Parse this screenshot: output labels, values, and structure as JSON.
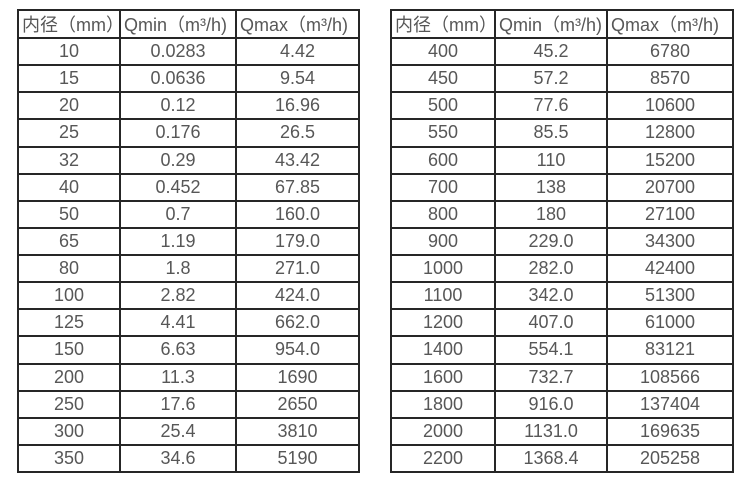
{
  "page": {
    "background_color": "#ffffff",
    "border_color": "#262626",
    "text_color": "#575757"
  },
  "tables": [
    {
      "name": "flow-table-small-diameters",
      "headers": [
        "内径（mm）",
        "Qmin（m³/h)",
        "Qmax（m³/h)"
      ],
      "rows": [
        [
          "10",
          "0.0283",
          "4.42"
        ],
        [
          "15",
          "0.0636",
          "9.54"
        ],
        [
          "20",
          "0.12",
          "16.96"
        ],
        [
          "25",
          "0.176",
          "26.5"
        ],
        [
          "32",
          "0.29",
          "43.42"
        ],
        [
          "40",
          "0.452",
          "67.85"
        ],
        [
          "50",
          "0.7",
          "160.0"
        ],
        [
          "65",
          "1.19",
          "179.0"
        ],
        [
          "80",
          "1.8",
          "271.0"
        ],
        [
          "100",
          "2.82",
          "424.0"
        ],
        [
          "125",
          "4.41",
          "662.0"
        ],
        [
          "150",
          "6.63",
          "954.0"
        ],
        [
          "200",
          "11.3",
          "1690"
        ],
        [
          "250",
          "17.6",
          "2650"
        ],
        [
          "300",
          "25.4",
          "3810"
        ],
        [
          "350",
          "34.6",
          "5190"
        ]
      ]
    },
    {
      "name": "flow-table-large-diameters",
      "headers": [
        "内径（mm）",
        "Qmin（m³/h)",
        "Qmax（m³/h)"
      ],
      "rows": [
        [
          "400",
          "45.2",
          "6780"
        ],
        [
          "450",
          "57.2",
          "8570"
        ],
        [
          "500",
          "77.6",
          "10600"
        ],
        [
          "550",
          "85.5",
          "12800"
        ],
        [
          "600",
          "110",
          "15200"
        ],
        [
          "700",
          "138",
          "20700"
        ],
        [
          "800",
          "180",
          "27100"
        ],
        [
          "900",
          "229.0",
          "34300"
        ],
        [
          "1000",
          "282.0",
          "42400"
        ],
        [
          "1100",
          "342.0",
          "51300"
        ],
        [
          "1200",
          "407.0",
          "61000"
        ],
        [
          "1400",
          "554.1",
          "83121"
        ],
        [
          "1600",
          "732.7",
          "108566"
        ],
        [
          "1800",
          "916.0",
          "137404"
        ],
        [
          "2000",
          "1131.0",
          "169635"
        ],
        [
          "2200",
          "1368.4",
          "205258"
        ]
      ]
    }
  ],
  "chart_data": [
    {
      "type": "table",
      "title": "",
      "columns": [
        "内径（mm）",
        "Qmin（m³/h)",
        "Qmax（m³/h)"
      ],
      "rows": [
        [
          10,
          0.0283,
          4.42
        ],
        [
          15,
          0.0636,
          9.54
        ],
        [
          20,
          0.12,
          16.96
        ],
        [
          25,
          0.176,
          26.5
        ],
        [
          32,
          0.29,
          43.42
        ],
        [
          40,
          0.452,
          67.85
        ],
        [
          50,
          0.7,
          160.0
        ],
        [
          65,
          1.19,
          179.0
        ],
        [
          80,
          1.8,
          271.0
        ],
        [
          100,
          2.82,
          424.0
        ],
        [
          125,
          4.41,
          662.0
        ],
        [
          150,
          6.63,
          954.0
        ],
        [
          200,
          11.3,
          1690
        ],
        [
          250,
          17.6,
          2650
        ],
        [
          300,
          25.4,
          3810
        ],
        [
          350,
          34.6,
          5190
        ]
      ]
    },
    {
      "type": "table",
      "title": "",
      "columns": [
        "内径（mm）",
        "Qmin（m³/h)",
        "Qmax（m³/h)"
      ],
      "rows": [
        [
          400,
          45.2,
          6780
        ],
        [
          450,
          57.2,
          8570
        ],
        [
          500,
          77.6,
          10600
        ],
        [
          550,
          85.5,
          12800
        ],
        [
          600,
          110,
          15200
        ],
        [
          700,
          138,
          20700
        ],
        [
          800,
          180,
          27100
        ],
        [
          900,
          229.0,
          34300
        ],
        [
          1000,
          282.0,
          42400
        ],
        [
          1100,
          342.0,
          51300
        ],
        [
          1200,
          407.0,
          61000
        ],
        [
          1400,
          554.1,
          83121
        ],
        [
          1600,
          732.7,
          108566
        ],
        [
          1800,
          916.0,
          137404
        ],
        [
          2000,
          1131.0,
          169635
        ],
        [
          2200,
          1368.4,
          205258
        ]
      ]
    }
  ]
}
